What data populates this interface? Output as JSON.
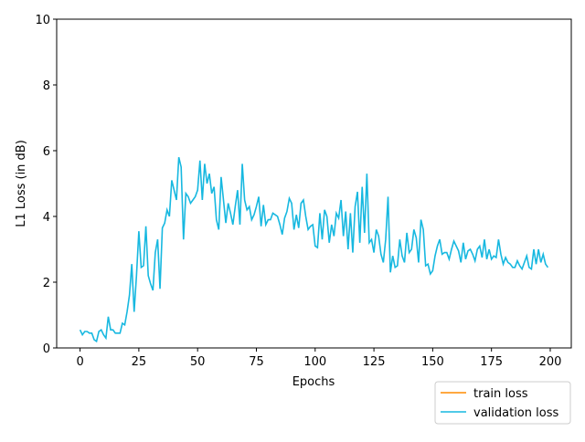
{
  "chart_data": {
    "type": "line",
    "xlabel": "Epochs",
    "ylabel": "L1 Loss (in dB)",
    "x": [
      0,
      1,
      2,
      3,
      4,
      5,
      6,
      7,
      8,
      9,
      10,
      11,
      12,
      13,
      14,
      15,
      16,
      17,
      18,
      19,
      20,
      21,
      22,
      23,
      24,
      25,
      26,
      27,
      28,
      29,
      30,
      31,
      32,
      33,
      34,
      35,
      36,
      37,
      38,
      39,
      40,
      41,
      42,
      43,
      44,
      45,
      46,
      47,
      48,
      49,
      50,
      51,
      52,
      53,
      54,
      55,
      56,
      57,
      58,
      59,
      60,
      61,
      62,
      63,
      64,
      65,
      66,
      67,
      68,
      69,
      70,
      71,
      72,
      73,
      74,
      75,
      76,
      77,
      78,
      79,
      80,
      81,
      82,
      83,
      84,
      85,
      86,
      87,
      88,
      89,
      90,
      91,
      92,
      93,
      94,
      95,
      96,
      97,
      98,
      99,
      100,
      101,
      102,
      103,
      104,
      105,
      106,
      107,
      108,
      109,
      110,
      111,
      112,
      113,
      114,
      115,
      116,
      117,
      118,
      119,
      120,
      121,
      122,
      123,
      124,
      125,
      126,
      127,
      128,
      129,
      130,
      131,
      132,
      133,
      134,
      135,
      136,
      137,
      138,
      139,
      140,
      141,
      142,
      143,
      144,
      145,
      146,
      147,
      148,
      149,
      150,
      151,
      152,
      153,
      154,
      155,
      156,
      157,
      158,
      159,
      160,
      161,
      162,
      163,
      164,
      165,
      166,
      167,
      168,
      169,
      170,
      171,
      172,
      173,
      174,
      175,
      176,
      177,
      178,
      179,
      180,
      181,
      182,
      183,
      184,
      185,
      186,
      187,
      188,
      189,
      190,
      191,
      192,
      193,
      194,
      195,
      196,
      197,
      198,
      199
    ],
    "series": [
      {
        "name": "train loss",
        "color": "#ff8c00",
        "values": [
          null,
          null,
          null,
          null,
          null,
          null,
          null,
          null,
          null,
          null,
          null,
          null,
          null,
          null,
          null,
          null,
          null,
          null,
          null,
          null,
          null,
          null,
          null,
          null,
          null,
          null,
          null,
          null,
          null,
          null,
          null,
          null,
          null,
          null,
          null,
          null,
          null,
          null,
          null,
          null,
          null,
          null,
          null,
          null,
          null,
          null,
          null,
          null,
          null,
          null,
          null,
          null,
          null,
          null,
          null,
          null,
          null,
          null,
          null,
          null,
          null,
          null,
          null,
          null,
          null,
          null,
          null,
          null,
          null,
          null,
          null,
          null,
          null,
          null,
          null,
          null,
          null,
          null,
          null,
          null,
          null,
          null,
          null,
          null,
          null,
          null,
          null,
          null,
          null,
          null,
          null,
          null,
          null,
          null,
          null,
          null,
          null,
          null,
          null,
          null,
          null,
          null,
          null,
          null,
          null,
          null,
          null,
          null,
          null,
          null,
          null,
          null,
          null,
          null,
          null,
          null,
          null,
          null,
          null,
          null,
          null,
          null,
          null,
          null,
          null,
          null,
          null,
          null,
          null,
          null,
          null,
          null,
          null,
          null,
          null,
          null,
          null,
          null,
          null,
          null,
          null,
          null,
          null,
          null,
          null,
          null,
          null,
          null,
          null,
          null,
          null,
          null,
          null,
          null,
          null,
          null,
          null,
          null,
          null,
          null,
          null,
          null,
          null,
          null,
          null,
          null,
          null,
          null,
          null,
          null,
          null,
          null,
          null,
          null,
          null,
          null,
          null,
          null,
          null,
          null,
          null,
          null,
          null,
          null,
          null,
          null,
          null,
          null,
          null,
          null,
          null,
          null,
          null,
          null,
          null,
          null,
          null,
          null,
          null,
          null
        ]
      },
      {
        "name": "validation loss",
        "color": "#17b8e0",
        "values": [
          0.55,
          0.4,
          0.5,
          0.5,
          0.45,
          0.45,
          0.25,
          0.2,
          0.5,
          0.55,
          0.4,
          0.3,
          0.95,
          0.55,
          0.55,
          0.45,
          0.45,
          0.45,
          0.75,
          0.7,
          1.1,
          1.6,
          2.55,
          1.1,
          2.2,
          3.55,
          2.45,
          2.5,
          3.7,
          2.2,
          1.95,
          1.75,
          2.9,
          3.3,
          1.8,
          3.65,
          3.8,
          4.2,
          4.0,
          5.1,
          4.8,
          4.5,
          5.8,
          5.5,
          3.3,
          4.7,
          4.6,
          4.4,
          4.5,
          4.6,
          4.8,
          5.7,
          4.5,
          5.6,
          5.0,
          5.3,
          4.7,
          4.9,
          3.9,
          3.6,
          5.2,
          4.5,
          3.8,
          4.4,
          4.1,
          3.75,
          4.3,
          4.8,
          3.75,
          5.6,
          4.5,
          4.2,
          4.3,
          3.9,
          4.05,
          4.3,
          4.6,
          3.7,
          4.35,
          3.75,
          3.9,
          3.9,
          4.1,
          4.05,
          4.0,
          3.75,
          3.45,
          3.95,
          4.15,
          4.55,
          4.4,
          3.6,
          4.05,
          3.65,
          4.4,
          4.5,
          4.0,
          3.6,
          3.7,
          3.75,
          3.1,
          3.05,
          4.1,
          3.3,
          4.2,
          4.0,
          3.2,
          3.75,
          3.4,
          4.1,
          3.95,
          4.5,
          3.4,
          4.15,
          3.0,
          4.1,
          2.9,
          4.3,
          4.75,
          3.2,
          4.9,
          3.5,
          5.3,
          3.2,
          3.3,
          2.9,
          3.6,
          3.4,
          2.85,
          2.6,
          3.3,
          4.6,
          2.3,
          2.8,
          2.45,
          2.5,
          3.3,
          2.8,
          2.6,
          3.5,
          2.9,
          3.0,
          3.6,
          3.35,
          2.6,
          3.9,
          3.6,
          2.5,
          2.55,
          2.25,
          2.35,
          2.8,
          3.1,
          3.3,
          2.85,
          2.9,
          2.9,
          2.7,
          3.0,
          3.25,
          3.1,
          2.95,
          2.6,
          3.2,
          2.7,
          2.95,
          3.0,
          2.85,
          2.65,
          3.0,
          3.1,
          2.75,
          3.3,
          2.7,
          3.0,
          2.7,
          2.8,
          2.75,
          3.3,
          2.85,
          2.55,
          2.75,
          2.6,
          2.55,
          2.45,
          2.45,
          2.65,
          2.5,
          2.4,
          2.6,
          2.8,
          2.45,
          2.4,
          3.0,
          2.55,
          3.0,
          2.6,
          2.85,
          2.55,
          2.45
        ]
      }
    ],
    "xlim": [
      -9.95,
      208.95
    ],
    "xticks": [
      0,
      25,
      50,
      75,
      100,
      125,
      150,
      175,
      200
    ],
    "ylim": [
      0,
      10
    ],
    "yticks": [
      0,
      2,
      4,
      6,
      8,
      10
    ],
    "grid": false,
    "legend": "lower right outside"
  }
}
